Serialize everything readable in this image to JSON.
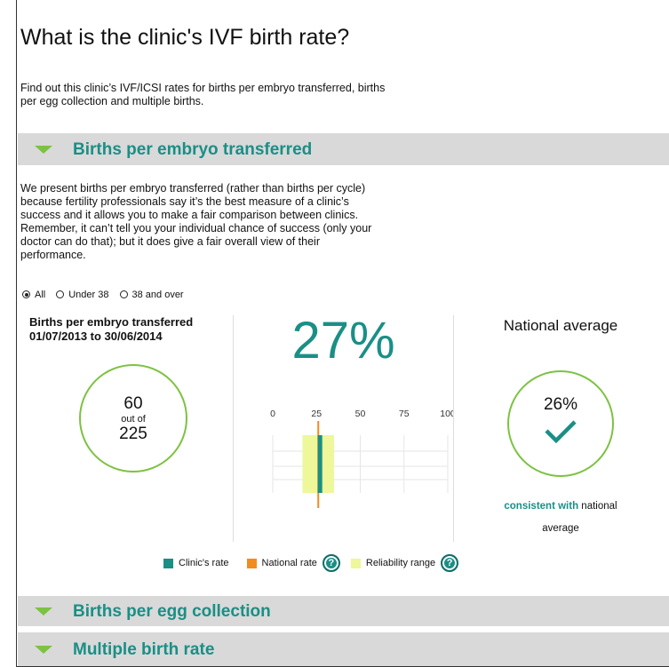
{
  "header": {
    "title": "What is the clinic's IVF birth rate?"
  },
  "intro": [
    "Find out this clinic’s IVF/ICSI rates for births per embryo transferred, births",
    "per egg collection and multiple births."
  ],
  "sections": [
    {
      "title": "Births per embryo transferred",
      "text": [
        "We present births per embryo transferred (rather than births per cycle)",
        "because fertility professionals say it’s the best measure of a clinic’s",
        "success and it allows you to make a fair comparison between clinics.",
        "Remember, it can’t tell you your individual chance of success (only your",
        "doctor can do that); but it does give a fair overall view of their",
        "performance."
      ],
      "filters": [
        "All",
        "Under 38",
        "38 and over"
      ],
      "selected_filter": 0,
      "panel": {
        "title_lines": [
          "Births per embryo transferred",
          "01/07/2013 to 30/06/2014"
        ],
        "births": 60,
        "out_of": "out of",
        "total": 225,
        "rate": "27%",
        "national_label": "National average",
        "national_rate": "26%",
        "comparison": "consistent with",
        "comparison_rest": "national",
        "comparison_end": "average"
      },
      "chart": {
        "type": "range",
        "xlim": [
          0,
          100
        ],
        "xticks": [
          0,
          25,
          50,
          75,
          100
        ],
        "clinic_rate": 27,
        "national_rate": 26,
        "reliability_range": [
          17,
          35
        ],
        "clinic_color": "#1a8f86",
        "national_color": "#f28c1e",
        "range_color": "#eef79a"
      },
      "legend": [
        {
          "label": "Clinic's rate",
          "color": "#1a8f86"
        },
        {
          "label": "National rate",
          "color": "#f28c1e",
          "help": "?"
        },
        {
          "label": "Reliability range",
          "color": "#eef79a",
          "help": "?"
        }
      ]
    },
    {
      "title": "Births per egg collection"
    },
    {
      "title": "Multiple birth rate"
    }
  ]
}
